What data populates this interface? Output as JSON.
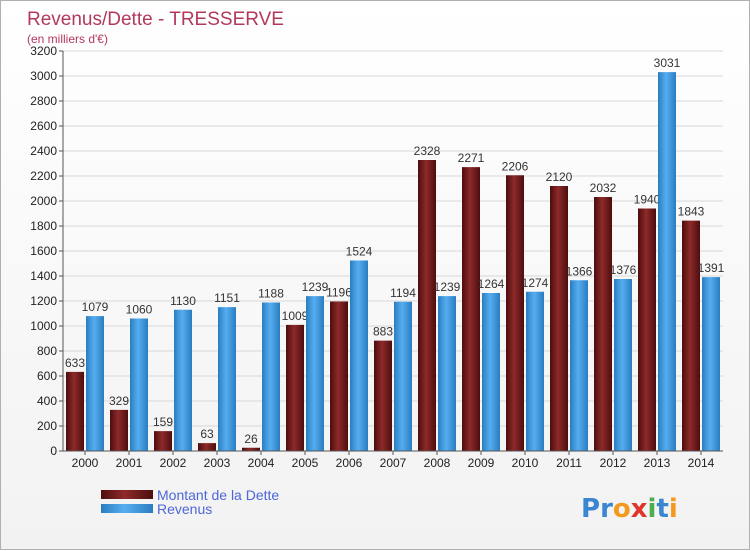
{
  "chart_data": {
    "type": "bar",
    "title": "Revenus/Dette - TRESSERVE",
    "subtitle": "(en milliers d'€)",
    "categories": [
      "2000",
      "2001",
      "2002",
      "2003",
      "2004",
      "2005",
      "2006",
      "2007",
      "2008",
      "2009",
      "2010",
      "2011",
      "2012",
      "2013",
      "2014"
    ],
    "series": [
      {
        "name": "Montant de la Dette",
        "color": "#7a1a1a",
        "values": [
          633,
          329,
          159,
          63,
          26,
          1009,
          1196,
          883,
          2328,
          2271,
          2206,
          2120,
          2032,
          1940,
          1843
        ]
      },
      {
        "name": "Revenus",
        "color": "#3a9be0",
        "values": [
          1079,
          1060,
          1130,
          1151,
          1188,
          1239,
          1524,
          1194,
          1239,
          1264,
          1274,
          1366,
          1376,
          3031,
          1391
        ]
      }
    ],
    "ylim": [
      0,
      3200
    ],
    "yticks": [
      0,
      200,
      400,
      600,
      800,
      1000,
      1200,
      1400,
      1600,
      1800,
      2000,
      2200,
      2400,
      2600,
      2800,
      3000,
      3200
    ],
    "grid": true,
    "legend_position": "bottom-left"
  },
  "logo": {
    "text": "Proxiti",
    "letters": [
      {
        "ch": "P",
        "color": "#3a86d0"
      },
      {
        "ch": "r",
        "color": "#3a86d0"
      },
      {
        "ch": "o",
        "color": "#f39a1e"
      },
      {
        "ch": "x",
        "color": "#e0352a"
      },
      {
        "ch": "i",
        "color": "#4cae4c"
      },
      {
        "ch": "t",
        "color": "#3a86d0"
      },
      {
        "ch": "i",
        "color": "#f39a1e"
      }
    ]
  }
}
